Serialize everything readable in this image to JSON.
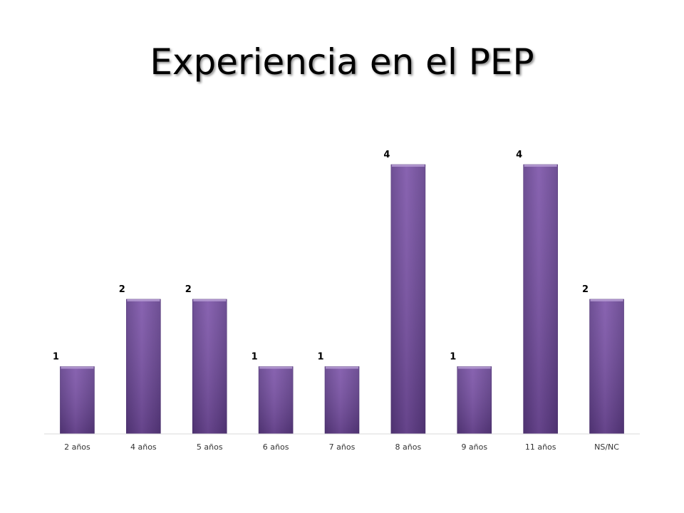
{
  "slide": {
    "title": "Experiencia en el PEP"
  },
  "chart_data": {
    "type": "bar",
    "title": "",
    "xlabel": "",
    "ylabel": "",
    "categories": [
      "2 años",
      "4 años",
      "5 años",
      "6 años",
      "7 años",
      "8 años",
      "9 años",
      "11 años",
      "NS/NC"
    ],
    "values": [
      1,
      2,
      2,
      1,
      1,
      4,
      1,
      4,
      2
    ],
    "ylim": [
      0,
      4
    ],
    "data_labels": true,
    "grid": false,
    "legend": "none",
    "bar_color": "#7B52A8",
    "bar_color_dark": "#5E3C88"
  }
}
